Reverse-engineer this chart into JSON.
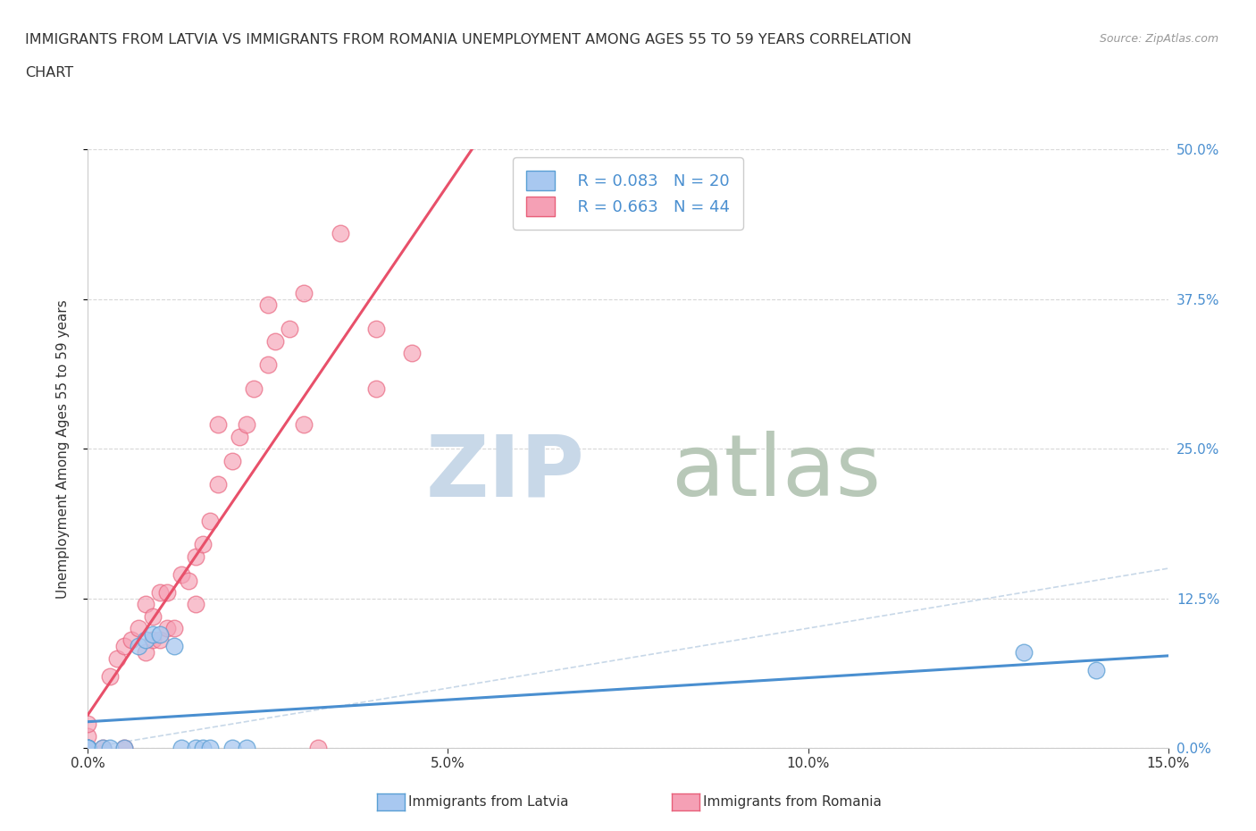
{
  "title_line1": "IMMIGRANTS FROM LATVIA VS IMMIGRANTS FROM ROMANIA UNEMPLOYMENT AMONG AGES 55 TO 59 YEARS CORRELATION",
  "title_line2": "CHART",
  "source": "Source: ZipAtlas.com",
  "ylabel": "Unemployment Among Ages 55 to 59 years",
  "xlim": [
    0.0,
    0.15
  ],
  "ylim": [
    0.0,
    0.5
  ],
  "xticks": [
    0.0,
    0.05,
    0.1,
    0.15
  ],
  "xtick_labels": [
    "0.0%",
    "5.0%",
    "10.0%",
    "15.0%"
  ],
  "yticks": [
    0.0,
    0.125,
    0.25,
    0.375,
    0.5
  ],
  "ytick_labels": [
    "0.0%",
    "12.5%",
    "25.0%",
    "37.5%",
    "50.0%"
  ],
  "latvia_color": "#a8c8f0",
  "romania_color": "#f5a0b5",
  "latvia_edge_color": "#5a9fd4",
  "romania_edge_color": "#e8607a",
  "latvia_line_color": "#4a8fd0",
  "romania_line_color": "#e8506a",
  "diag_line_color": "#c8d8e8",
  "legend_r_latvia": "R = 0.083",
  "legend_n_latvia": "N = 20",
  "legend_r_romania": "R = 0.663",
  "legend_n_romania": "N = 44",
  "latvia_x": [
    0.0,
    0.0,
    0.0,
    0.0,
    0.002,
    0.003,
    0.005,
    0.007,
    0.008,
    0.009,
    0.01,
    0.012,
    0.013,
    0.015,
    0.016,
    0.017,
    0.02,
    0.022,
    0.13,
    0.14
  ],
  "latvia_y": [
    0.0,
    0.0,
    0.0,
    0.0,
    0.0,
    0.0,
    0.0,
    0.085,
    0.09,
    0.095,
    0.095,
    0.085,
    0.0,
    0.0,
    0.0,
    0.0,
    0.0,
    0.0,
    0.08,
    0.065
  ],
  "romania_x": [
    0.0,
    0.0,
    0.0,
    0.0,
    0.0,
    0.002,
    0.003,
    0.004,
    0.005,
    0.005,
    0.006,
    0.007,
    0.008,
    0.008,
    0.009,
    0.009,
    0.01,
    0.01,
    0.011,
    0.011,
    0.012,
    0.013,
    0.014,
    0.015,
    0.015,
    0.016,
    0.017,
    0.018,
    0.018,
    0.02,
    0.021,
    0.022,
    0.023,
    0.025,
    0.025,
    0.026,
    0.028,
    0.03,
    0.03,
    0.032,
    0.035,
    0.04,
    0.04,
    0.045
  ],
  "romania_y": [
    0.0,
    0.0,
    0.0,
    0.01,
    0.02,
    0.0,
    0.06,
    0.075,
    0.0,
    0.085,
    0.09,
    0.1,
    0.08,
    0.12,
    0.09,
    0.11,
    0.09,
    0.13,
    0.1,
    0.13,
    0.1,
    0.145,
    0.14,
    0.12,
    0.16,
    0.17,
    0.19,
    0.22,
    0.27,
    0.24,
    0.26,
    0.27,
    0.3,
    0.32,
    0.37,
    0.34,
    0.35,
    0.38,
    0.27,
    0.0,
    0.43,
    0.35,
    0.3,
    0.33
  ],
  "background_color": "#ffffff",
  "grid_color": "#d8d8d8",
  "text_color": "#333333",
  "yaxis_color": "#4a8fd0",
  "watermark_zip_color": "#c8d8e8",
  "watermark_atlas_color": "#b8c8b8"
}
